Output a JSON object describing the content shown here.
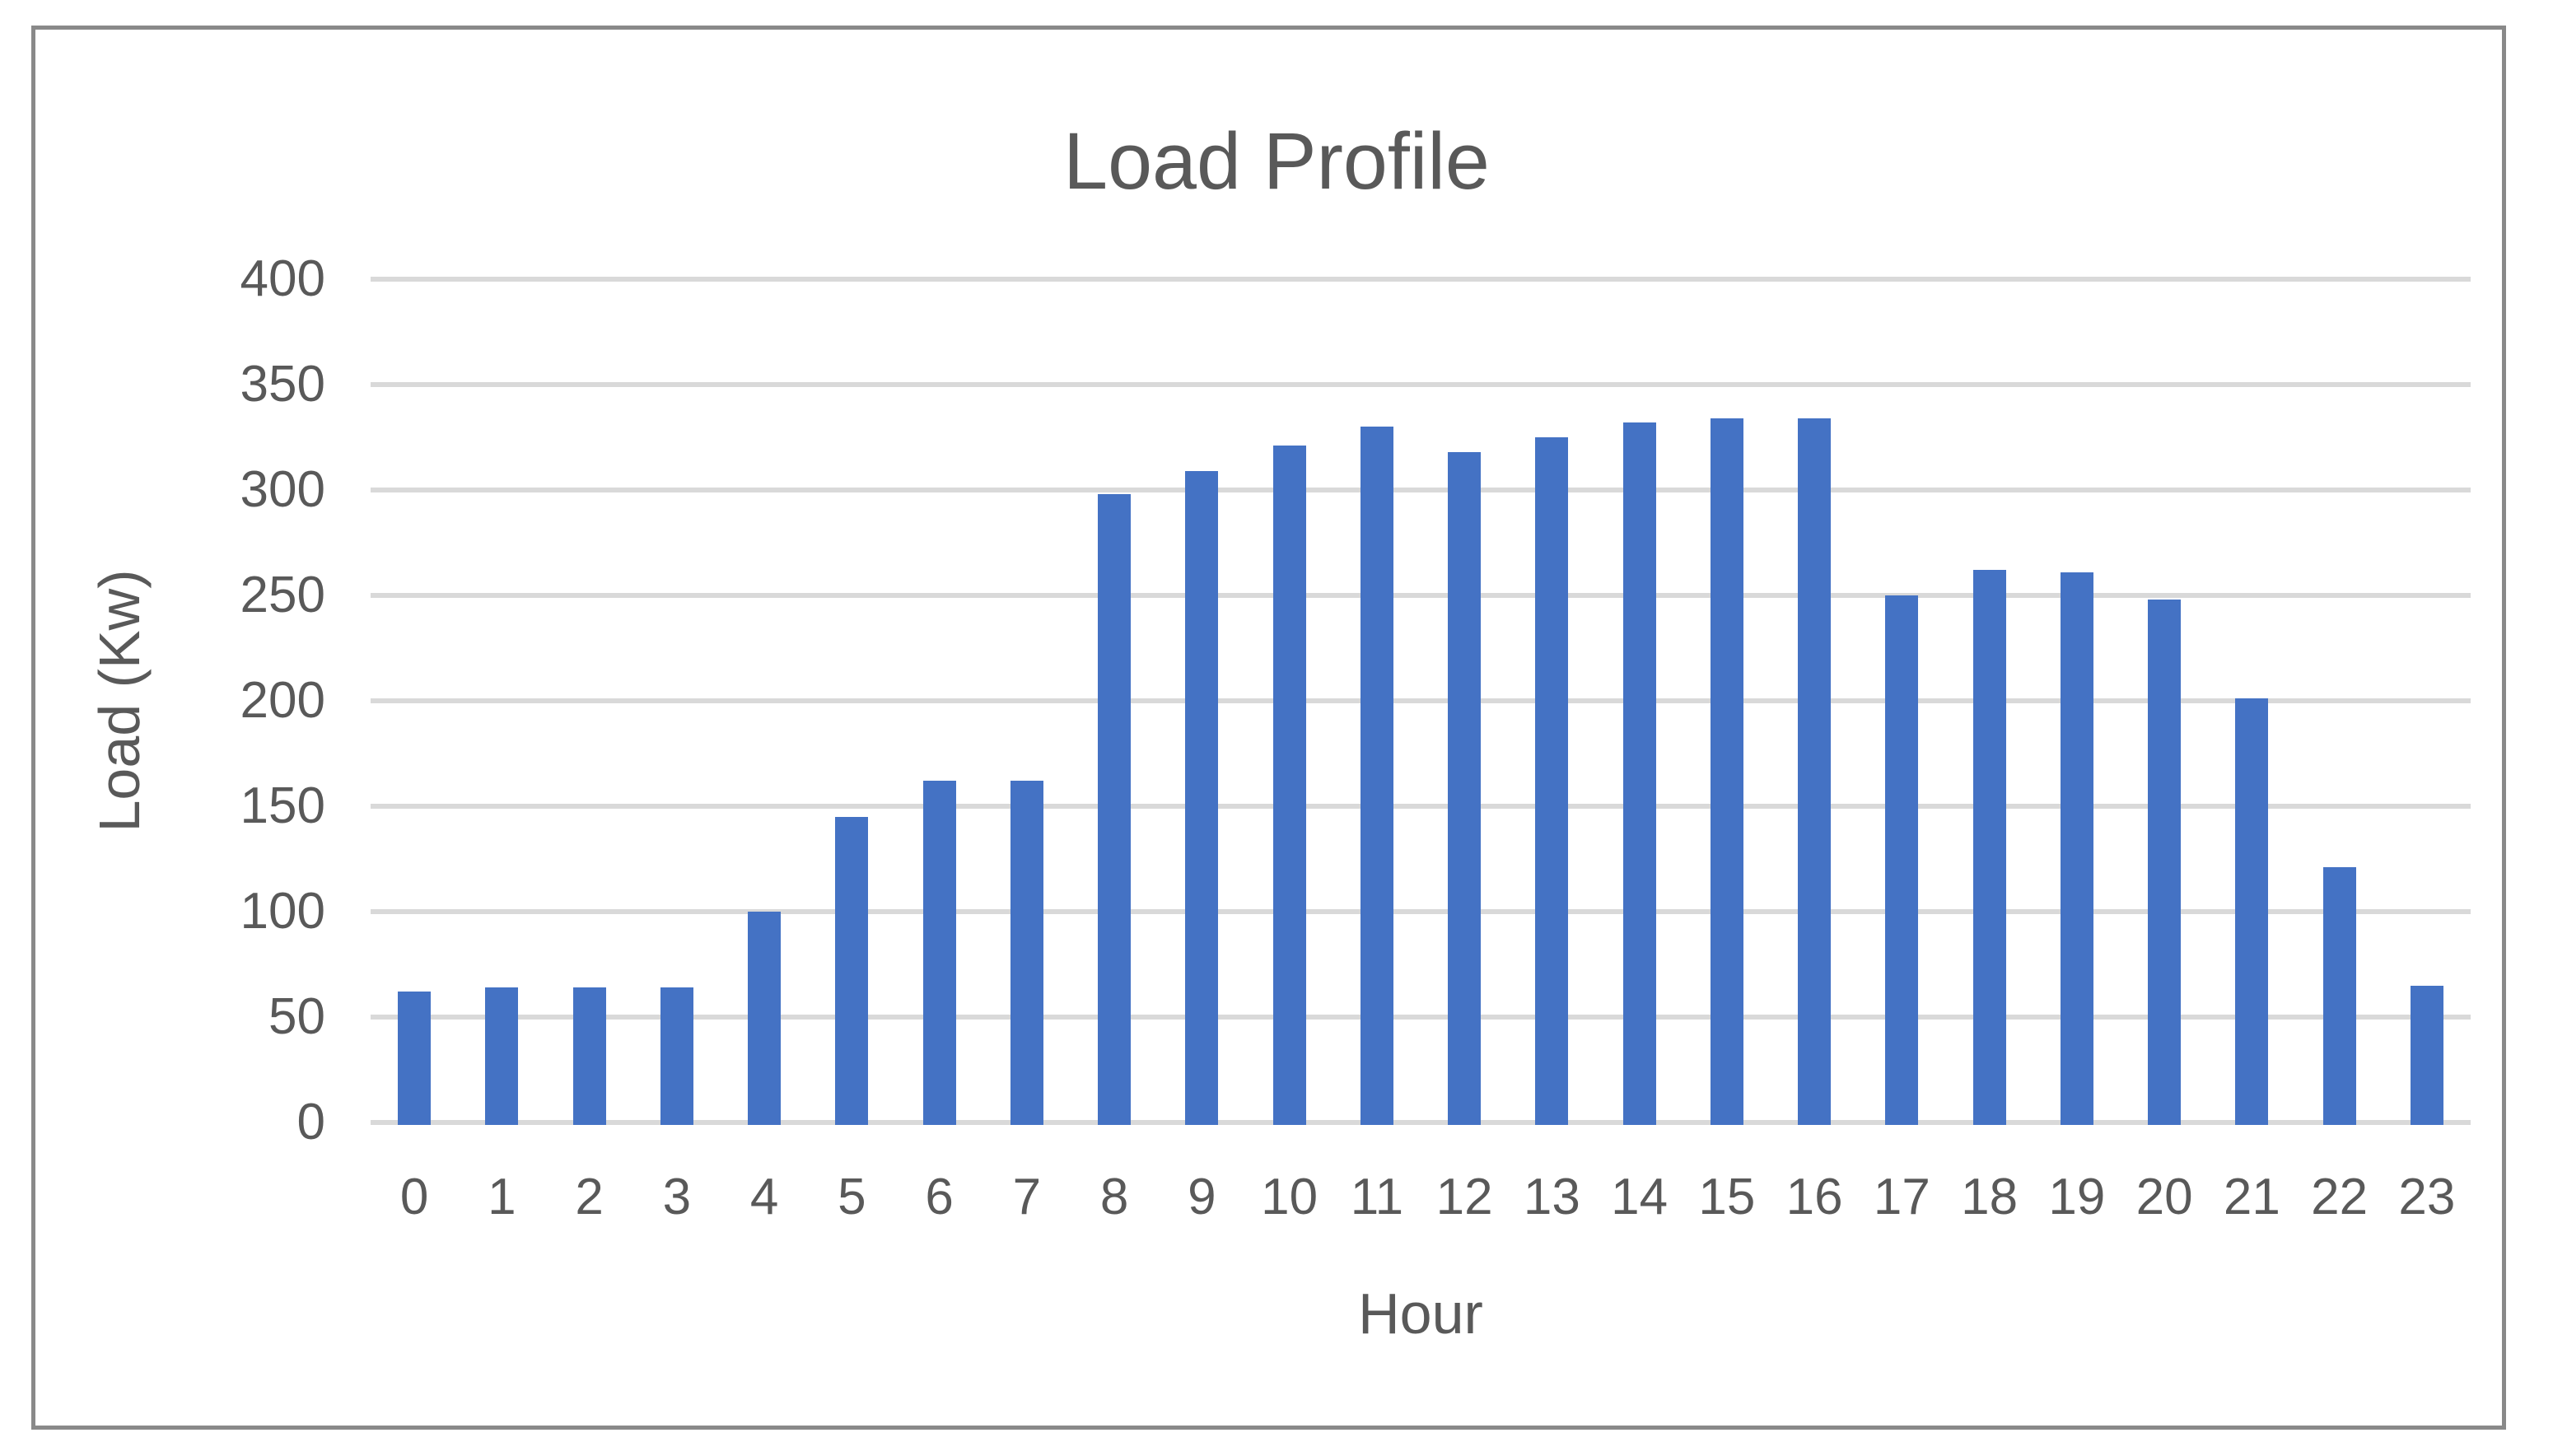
{
  "chart_data": {
    "type": "bar",
    "title": "Load Profile",
    "xlabel": "Hour",
    "ylabel": "Load (Kw)",
    "categories": [
      "0",
      "1",
      "2",
      "3",
      "4",
      "5",
      "6",
      "7",
      "8",
      "9",
      "10",
      "11",
      "12",
      "13",
      "14",
      "15",
      "16",
      "17",
      "18",
      "19",
      "20",
      "21",
      "22",
      "23"
    ],
    "values": [
      62,
      64,
      64,
      64,
      100,
      145,
      162,
      162,
      298,
      309,
      321,
      330,
      318,
      325,
      332,
      334,
      334,
      250,
      262,
      261,
      248,
      201,
      121,
      65
    ],
    "ylim": [
      0,
      400
    ],
    "yticks": [
      0,
      50,
      100,
      150,
      200,
      250,
      300,
      350,
      400
    ],
    "grid": "horizontal-only",
    "legend": "none",
    "colors": {
      "bar": "#4472c4",
      "gridline": "#d9d9d9",
      "text": "#595959",
      "frame_border": "#898989",
      "background": "#ffffff"
    }
  }
}
